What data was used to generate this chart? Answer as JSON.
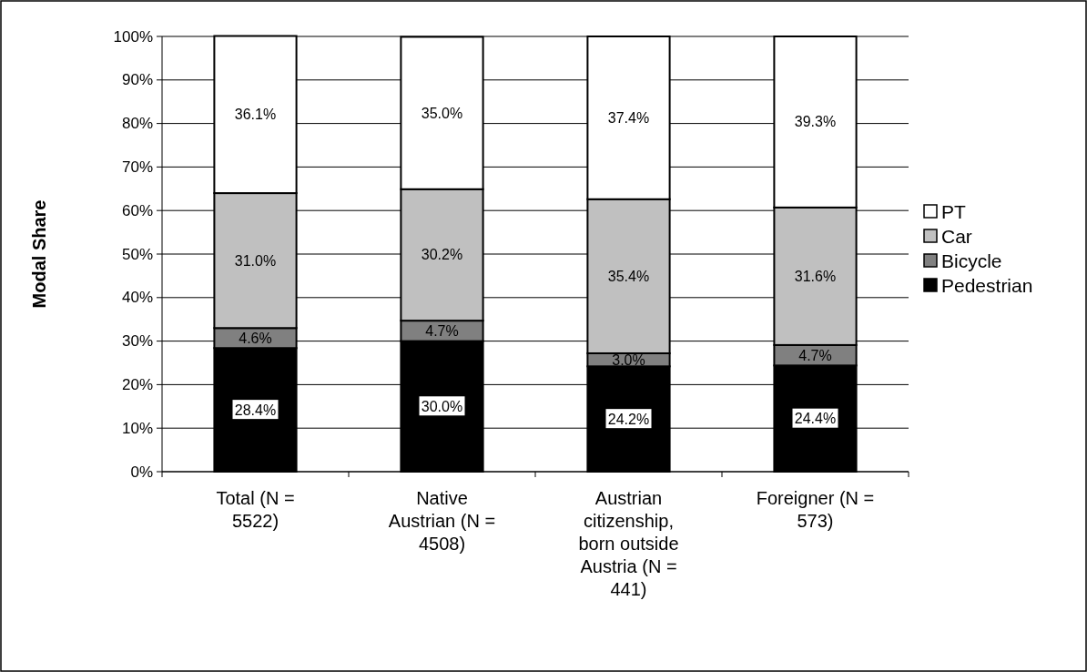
{
  "chart_data": {
    "type": "bar",
    "stacked": true,
    "ylabel": "Modal Share",
    "categories": [
      "Total (N = 5522)",
      "Native Austrian (N = 4508)",
      "Austrian citizenship, born outside Austria (N = 441)",
      "Foreigner (N = 573)"
    ],
    "series": [
      {
        "name": "Pedestrian",
        "color": "#000000",
        "values": [
          28.4,
          30.0,
          24.2,
          24.4
        ],
        "value_labels": [
          "28.4%",
          "30.0%",
          "24.2%",
          "24.4%"
        ]
      },
      {
        "name": "Bicycle",
        "color": "#808080",
        "values": [
          4.6,
          4.7,
          3.0,
          4.7
        ],
        "value_labels": [
          "4.6%",
          "4.7%",
          "3.0%",
          "4.7%"
        ]
      },
      {
        "name": "Car",
        "color": "#c0c0c0",
        "values": [
          31.0,
          30.2,
          35.4,
          31.6
        ],
        "value_labels": [
          "31.0%",
          "30.2%",
          "35.4%",
          "31.6%"
        ]
      },
      {
        "name": "PT",
        "color": "#ffffff",
        "values": [
          36.1,
          35.0,
          37.4,
          39.3
        ],
        "value_labels": [
          "36.1%",
          "35.0%",
          "37.4%",
          "39.3%"
        ]
      }
    ],
    "ylim": [
      0,
      100
    ],
    "yticks": [
      {
        "value": 0,
        "label": "0%"
      },
      {
        "value": 10,
        "label": "10%"
      },
      {
        "value": 20,
        "label": "20%"
      },
      {
        "value": 30,
        "label": "30%"
      },
      {
        "value": 40,
        "label": "40%"
      },
      {
        "value": 50,
        "label": "50%"
      },
      {
        "value": 60,
        "label": "60%"
      },
      {
        "value": 70,
        "label": "70%"
      },
      {
        "value": 80,
        "label": "80%"
      },
      {
        "value": 90,
        "label": "90%"
      },
      {
        "value": 100,
        "label": "100%"
      }
    ],
    "grid": "y",
    "legend": "right"
  }
}
